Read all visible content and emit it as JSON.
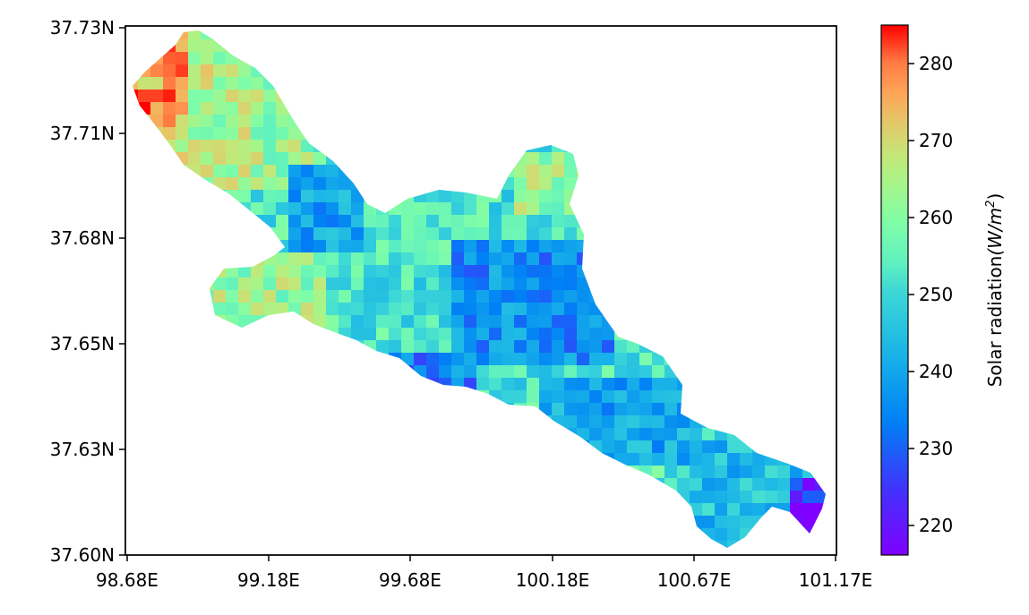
{
  "map": {
    "x_ticks": [
      "98.68E",
      "99.18E",
      "99.68E",
      "100.18E",
      "100.67E",
      "101.17E"
    ],
    "y_ticks": [
      "37.73N",
      "37.71N",
      "37.68N",
      "37.65N",
      "37.63N",
      "37.60N"
    ],
    "colorbar": {
      "title_main": "Solar radiation",
      "title_unit": "(W/m",
      "title_sup": "2",
      "title_close": ")",
      "ticks": [
        "220",
        "230",
        "240",
        "250",
        "260",
        "270",
        "280"
      ],
      "range": [
        216,
        285
      ],
      "colormap": "rainbow"
    },
    "raster_description": "Solar radiation raster over an elongated NW-SE basin; highs (~265-285) in NW, lows (~218-235) in central-south and SE tip"
  }
}
